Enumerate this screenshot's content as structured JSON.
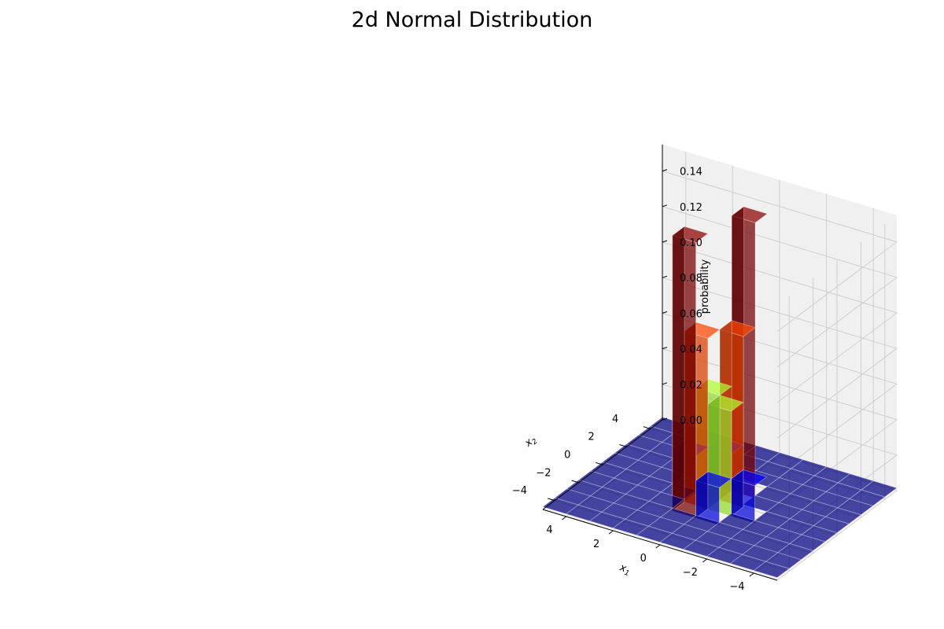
{
  "chart_data": {
    "type": "bar3d",
    "title": "2d Normal Distribution",
    "xlabel": "x",
    "xlabel_sub": "1",
    "ylabel": "x",
    "ylabel_sub": "2",
    "zlabel": "probability",
    "xlim": [
      -5,
      5
    ],
    "ylim": [
      -5,
      5
    ],
    "zlim": [
      0,
      0.15
    ],
    "x_ticks": [
      "−4",
      "−2",
      "0",
      "2",
      "4"
    ],
    "y_ticks": [
      "−4",
      "−2",
      "0",
      "2",
      "4"
    ],
    "z_ticks": [
      "0.00",
      "0.02",
      "0.04",
      "0.06",
      "0.08",
      "0.10",
      "0.12",
      "0.14"
    ],
    "grid": true,
    "bins_x": [
      -5,
      -4,
      -3,
      -2,
      -1,
      0,
      1,
      2,
      3,
      4
    ],
    "bins_y": [
      -5,
      -4,
      -3,
      -2,
      -1,
      0,
      1,
      2,
      3,
      4
    ],
    "bin_width": 1,
    "bars": [
      {
        "x": -1,
        "y": 0,
        "value": 0.096
      },
      {
        "x": 0,
        "y": -1,
        "value": 0.096
      },
      {
        "x": -1,
        "y": -1,
        "value": 0.059
      },
      {
        "x": 0,
        "y": 0,
        "value": 0.059
      },
      {
        "x": -2,
        "y": -1,
        "value": 0.021
      },
      {
        "x": -1,
        "y": -2,
        "value": 0.021
      },
      {
        "x": 0,
        "y": 1,
        "value": 0.021
      },
      {
        "x": 1,
        "y": 0,
        "value": 0.021
      },
      {
        "x": -1,
        "y": 1,
        "value": 0.155
      },
      {
        "x": 0,
        "y": -2,
        "value": 0.155
      }
    ],
    "color_low": "#000080",
    "color_mid1": "#0000ff",
    "color_mid2": "#adff2f",
    "color_mid3": "#ff4500",
    "color_high": "#8b0000"
  }
}
